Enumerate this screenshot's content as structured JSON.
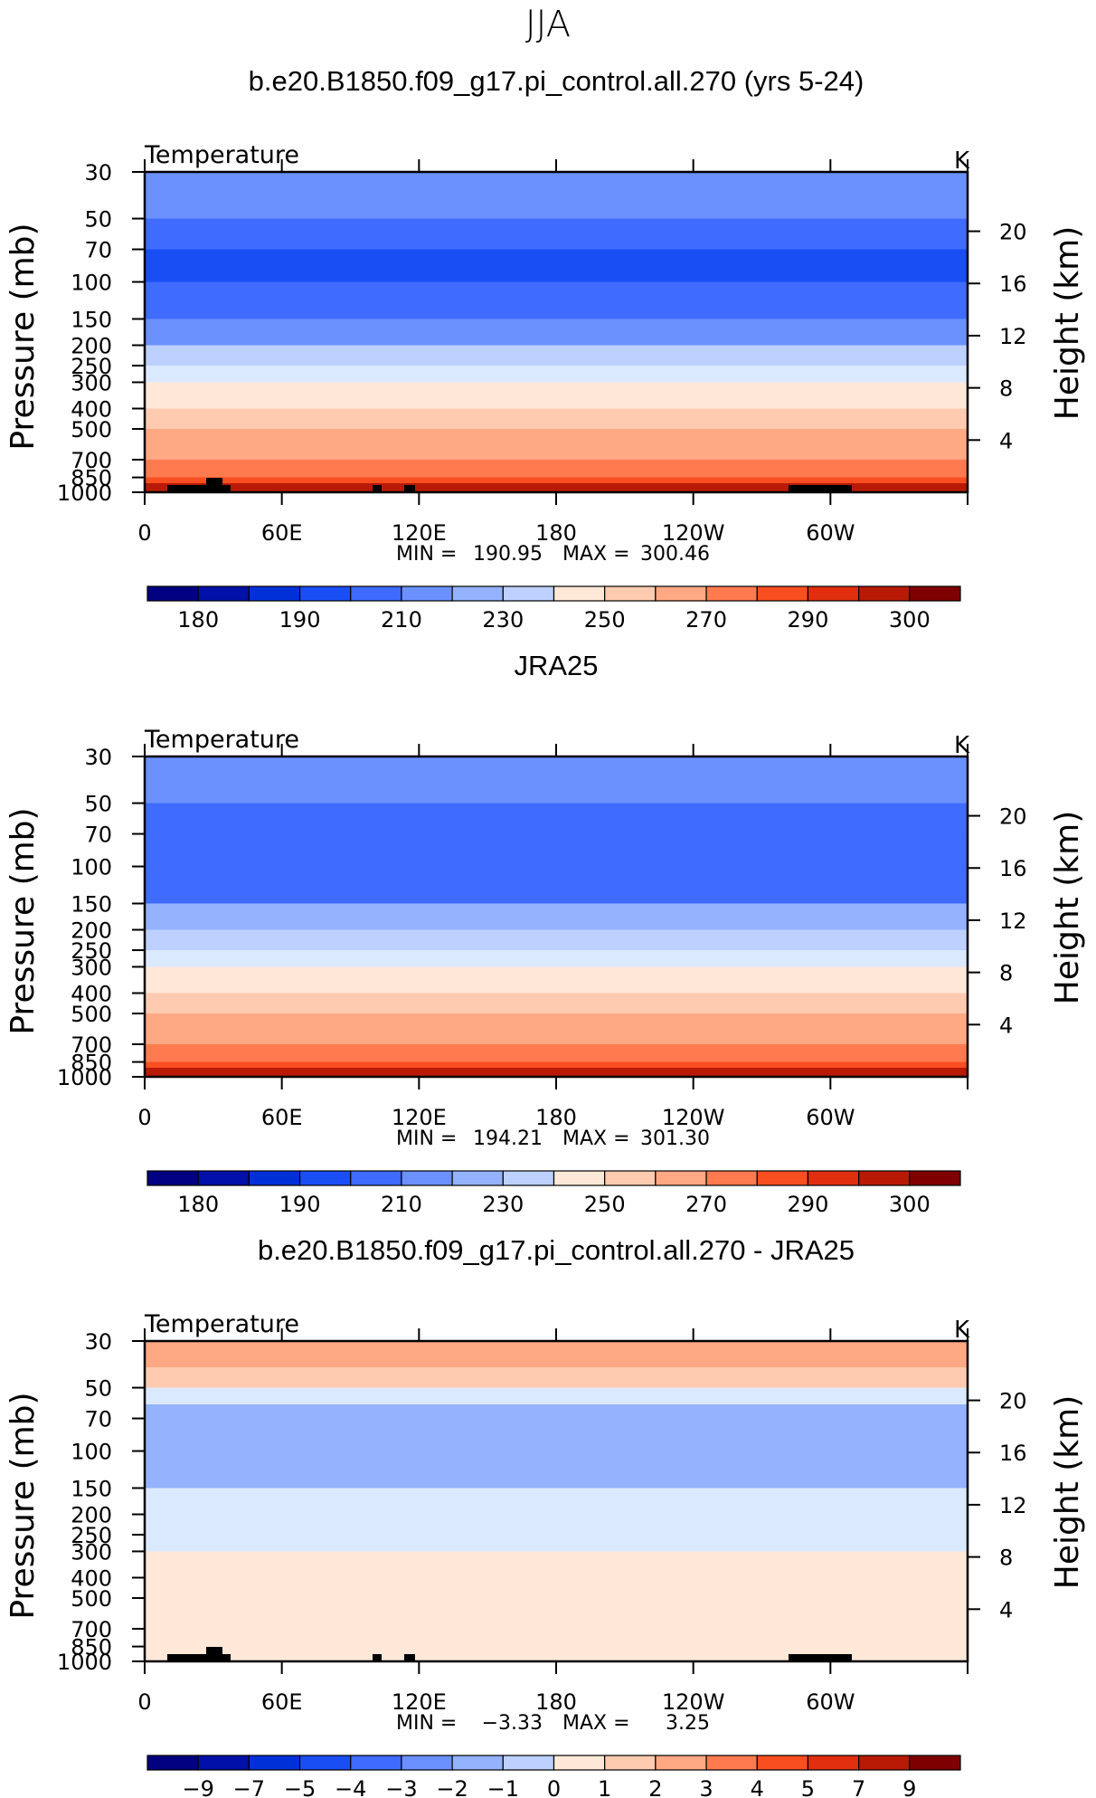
{
  "figure_title": "JJA",
  "chart_data": [
    {
      "type": "heatmap",
      "title": "b.e20.B1850.f09_g17.pi_control.all.270 (yrs 5-24)",
      "variable_label": "Temperature",
      "units": "K",
      "ylabel": "Pressure (mb)",
      "ylabel_right": "Height (km)",
      "x_ticks": [
        "0",
        "60E",
        "120E",
        "180",
        "120W",
        "60W"
      ],
      "y_ticks": [
        "30",
        "50",
        "70",
        "100",
        "150",
        "200",
        "250",
        "300",
        "400",
        "500",
        "700",
        "850",
        "1000"
      ],
      "y2_ticks": [
        "20",
        "16",
        "12",
        "8",
        "4"
      ],
      "ylim": [
        1000,
        30
      ],
      "min_label": "MIN  =",
      "min_value": "190.95",
      "max_label": "MAX  =",
      "max_value": "300.46",
      "colorbar_ticks": [
        "180",
        "190",
        "210",
        "230",
        "250",
        "270",
        "290",
        "300"
      ],
      "levels": [
        {
          "pressure": 30,
          "value": 213
        },
        {
          "pressure": 50,
          "value": 202
        },
        {
          "pressure": 70,
          "value": 196
        },
        {
          "pressure": 100,
          "value": 193
        },
        {
          "pressure": 150,
          "value": 203
        },
        {
          "pressure": 200,
          "value": 216
        },
        {
          "pressure": 250,
          "value": 227
        },
        {
          "pressure": 300,
          "value": 236
        },
        {
          "pressure": 400,
          "value": 249
        },
        {
          "pressure": 500,
          "value": 258
        },
        {
          "pressure": 700,
          "value": 274
        },
        {
          "pressure": 850,
          "value": 283
        },
        {
          "pressure": 1000,
          "value": 290
        }
      ]
    },
    {
      "type": "heatmap",
      "title": "JRA25",
      "variable_label": "Temperature",
      "units": "K",
      "ylabel": "Pressure (mb)",
      "ylabel_right": "Height (km)",
      "x_ticks": [
        "0",
        "60E",
        "120E",
        "180",
        "120W",
        "60W"
      ],
      "y_ticks": [
        "30",
        "50",
        "70",
        "100",
        "150",
        "200",
        "250",
        "300",
        "400",
        "500",
        "700",
        "850",
        "1000"
      ],
      "y2_ticks": [
        "20",
        "16",
        "12",
        "8",
        "4"
      ],
      "ylim": [
        1000,
        30
      ],
      "min_label": "MIN  =",
      "min_value": "194.21",
      "max_label": "MAX  =",
      "max_value": "301.30",
      "colorbar_ticks": [
        "180",
        "190",
        "210",
        "230",
        "250",
        "270",
        "290",
        "300"
      ],
      "levels": [
        {
          "pressure": 30,
          "value": 210
        },
        {
          "pressure": 50,
          "value": 201
        },
        {
          "pressure": 70,
          "value": 197
        },
        {
          "pressure": 100,
          "value": 195
        },
        {
          "pressure": 150,
          "value": 204
        },
        {
          "pressure": 200,
          "value": 217
        },
        {
          "pressure": 250,
          "value": 228
        },
        {
          "pressure": 300,
          "value": 237
        },
        {
          "pressure": 400,
          "value": 250
        },
        {
          "pressure": 500,
          "value": 259
        },
        {
          "pressure": 700,
          "value": 275
        },
        {
          "pressure": 850,
          "value": 284
        },
        {
          "pressure": 1000,
          "value": 291
        }
      ]
    },
    {
      "type": "heatmap",
      "title": "b.e20.B1850.f09_g17.pi_control.all.270 - JRA25",
      "variable_label": "Temperature",
      "units": "K",
      "ylabel": "Pressure (mb)",
      "ylabel_right": "Height (km)",
      "x_ticks": [
        "0",
        "60E",
        "120E",
        "180",
        "120W",
        "60W"
      ],
      "y_ticks": [
        "30",
        "50",
        "70",
        "100",
        "150",
        "200",
        "250",
        "300",
        "400",
        "500",
        "700",
        "850",
        "1000"
      ],
      "y2_ticks": [
        "20",
        "16",
        "12",
        "8",
        "4"
      ],
      "ylim": [
        1000,
        30
      ],
      "min_label": "MIN  =",
      "min_value": "−3.33",
      "max_label": "MAX  =",
      "max_value": "3.25",
      "colorbar_ticks": [
        "−9",
        "−7",
        "−5",
        "−4",
        "−3",
        "−2",
        "−1",
        "0",
        "1",
        "2",
        "3",
        "4",
        "5",
        "7",
        "9"
      ],
      "levels": [
        {
          "pressure": 30,
          "value": 2.5
        },
        {
          "pressure": 40,
          "value": 1.5
        },
        {
          "pressure": 50,
          "value": 0.5
        },
        {
          "pressure": 60,
          "value": -1.5
        },
        {
          "pressure": 70,
          "value": -2.6
        },
        {
          "pressure": 100,
          "value": -3
        },
        {
          "pressure": 150,
          "value": -1.5
        },
        {
          "pressure": 200,
          "value": -0.5
        },
        {
          "pressure": 300,
          "value": -0.5
        },
        {
          "pressure": 500,
          "value": 0.5
        },
        {
          "pressure": 700,
          "value": -0.5
        },
        {
          "pressure": 1000,
          "value": 0.5
        }
      ]
    }
  ],
  "colormap": [
    "#000080",
    "#0010a8",
    "#0030d8",
    "#1a4ef5",
    "#3f6bff",
    "#6b91ff",
    "#94b2ff",
    "#bdd0ff",
    "#dbe9ff",
    "#ffe8d8",
    "#ffcbb0",
    "#ffa884",
    "#ff7a4f",
    "#f84e20",
    "#e02e0e",
    "#b81a06",
    "#7f0000"
  ]
}
